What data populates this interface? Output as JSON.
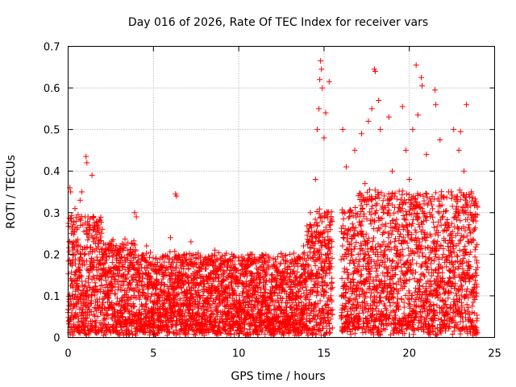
{
  "chart_data": {
    "type": "scatter",
    "title": "Day 016 of 2026, Rate Of TEC Index for receiver vars",
    "xlabel": "GPS time / hours",
    "ylabel": "ROTI / TECUs",
    "xlim": [
      0,
      25
    ],
    "ylim": [
      0,
      0.7
    ],
    "xticks": [
      0,
      5,
      10,
      15,
      20,
      25
    ],
    "xtick_labels": [
      "0",
      "5",
      "10",
      "15",
      "20",
      "25"
    ],
    "yticks": [
      0,
      0.1,
      0.2,
      0.3,
      0.4,
      0.5,
      0.6,
      0.7
    ],
    "ytick_labels": [
      "0",
      "0.1",
      "0.2",
      "0.3",
      "0.4",
      "0.5",
      "0.6",
      "0.7"
    ],
    "grid": true,
    "marker": "+",
    "color": "#ff0000",
    "series": [
      {
        "name": "ROTI",
        "points": [
          [
            0.05,
            0.04
          ],
          [
            0.1,
            0.36
          ],
          [
            0.15,
            0.35
          ],
          [
            0.2,
            0.25
          ],
          [
            0.3,
            0.12
          ],
          [
            0.4,
            0.31
          ],
          [
            0.5,
            0.08
          ],
          [
            0.6,
            0.22
          ],
          [
            0.7,
            0.33
          ],
          [
            0.8,
            0.35
          ],
          [
            1.0,
            0.29
          ],
          [
            1.05,
            0.435
          ],
          [
            1.1,
            0.42
          ],
          [
            1.2,
            0.1
          ],
          [
            1.4,
            0.39
          ],
          [
            1.5,
            0.18
          ],
          [
            1.7,
            0.27
          ],
          [
            2.0,
            0.26
          ],
          [
            2.2,
            0.15
          ],
          [
            2.5,
            0.21
          ],
          [
            3.0,
            0.18
          ],
          [
            3.2,
            0.05
          ],
          [
            3.6,
            0.2
          ],
          [
            3.9,
            0.3
          ],
          [
            4.0,
            0.29
          ],
          [
            4.3,
            0.08
          ],
          [
            4.6,
            0.22
          ],
          [
            5.0,
            0.12
          ],
          [
            5.5,
            0.17
          ],
          [
            6.0,
            0.24
          ],
          [
            6.3,
            0.345
          ],
          [
            6.35,
            0.34
          ],
          [
            6.8,
            0.2
          ],
          [
            7.2,
            0.23
          ],
          [
            7.6,
            0.15
          ],
          [
            8.0,
            0.09
          ],
          [
            8.6,
            0.21
          ],
          [
            9.0,
            0.05
          ],
          [
            9.6,
            0.2
          ],
          [
            10.2,
            0.13
          ],
          [
            10.8,
            0.2
          ],
          [
            11.4,
            0.08
          ],
          [
            12.0,
            0.03
          ],
          [
            12.5,
            0.12
          ],
          [
            13.0,
            0.2
          ],
          [
            13.4,
            0.1
          ],
          [
            13.8,
            0.22
          ],
          [
            14.2,
            0.3
          ],
          [
            14.5,
            0.38
          ],
          [
            14.6,
            0.5
          ],
          [
            14.7,
            0.55
          ],
          [
            14.75,
            0.62
          ],
          [
            14.8,
            0.665
          ],
          [
            14.85,
            0.645
          ],
          [
            14.9,
            0.6
          ],
          [
            15.0,
            0.48
          ],
          [
            15.1,
            0.54
          ],
          [
            15.2,
            0.3
          ],
          [
            15.3,
            0.615
          ],
          [
            15.4,
            0.1
          ],
          [
            16.1,
            0.5
          ],
          [
            16.3,
            0.41
          ],
          [
            16.6,
            0.3
          ],
          [
            16.8,
            0.45
          ],
          [
            17.0,
            0.2
          ],
          [
            17.2,
            0.49
          ],
          [
            17.4,
            0.37
          ],
          [
            17.6,
            0.52
          ],
          [
            17.8,
            0.55
          ],
          [
            17.95,
            0.645
          ],
          [
            18.0,
            0.64
          ],
          [
            18.2,
            0.57
          ],
          [
            18.3,
            0.5
          ],
          [
            18.5,
            0.3
          ],
          [
            18.8,
            0.53
          ],
          [
            19.0,
            0.4
          ],
          [
            19.3,
            0.2
          ],
          [
            19.6,
            0.555
          ],
          [
            19.8,
            0.45
          ],
          [
            20.0,
            0.38
          ],
          [
            20.2,
            0.5
          ],
          [
            20.4,
            0.655
          ],
          [
            20.5,
            0.535
          ],
          [
            20.7,
            0.625
          ],
          [
            20.75,
            0.605
          ],
          [
            21.0,
            0.44
          ],
          [
            21.2,
            0.3
          ],
          [
            21.5,
            0.595
          ],
          [
            21.55,
            0.56
          ],
          [
            21.8,
            0.475
          ],
          [
            22.0,
            0.2
          ],
          [
            22.3,
            0.35
          ],
          [
            22.6,
            0.5
          ],
          [
            22.9,
            0.45
          ],
          [
            23.0,
            0.495
          ],
          [
            23.2,
            0.4
          ],
          [
            23.35,
            0.56
          ],
          [
            23.5,
            0.15
          ],
          [
            23.7,
            0.1
          ],
          [
            23.9,
            0.28
          ],
          [
            23.95,
            0.04
          ]
        ]
      }
    ]
  }
}
